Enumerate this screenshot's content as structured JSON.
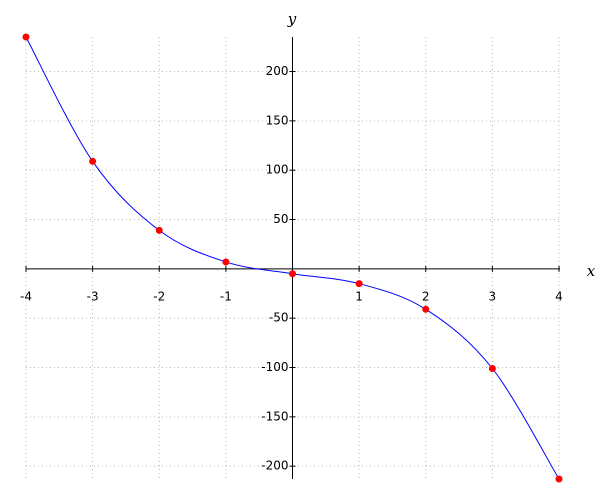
{
  "chart_data": {
    "type": "line",
    "x_label": "x",
    "y_label": "y",
    "x": [
      -4,
      -3,
      -2,
      -1,
      0,
      1,
      2,
      3,
      4
    ],
    "values": [
      235,
      109,
      39,
      7,
      -5,
      -15,
      -41,
      -101,
      -213
    ],
    "color": "#0000ff",
    "marker_color": "#ff0000",
    "xlim": [
      -4,
      4
    ],
    "ylim": [
      -213,
      235
    ],
    "xticks": [
      -4,
      -3,
      -2,
      -1,
      1,
      2,
      3,
      4
    ],
    "yticks": [
      -200,
      -150,
      -100,
      -50,
      50,
      100,
      150,
      200
    ],
    "grid": true
  }
}
